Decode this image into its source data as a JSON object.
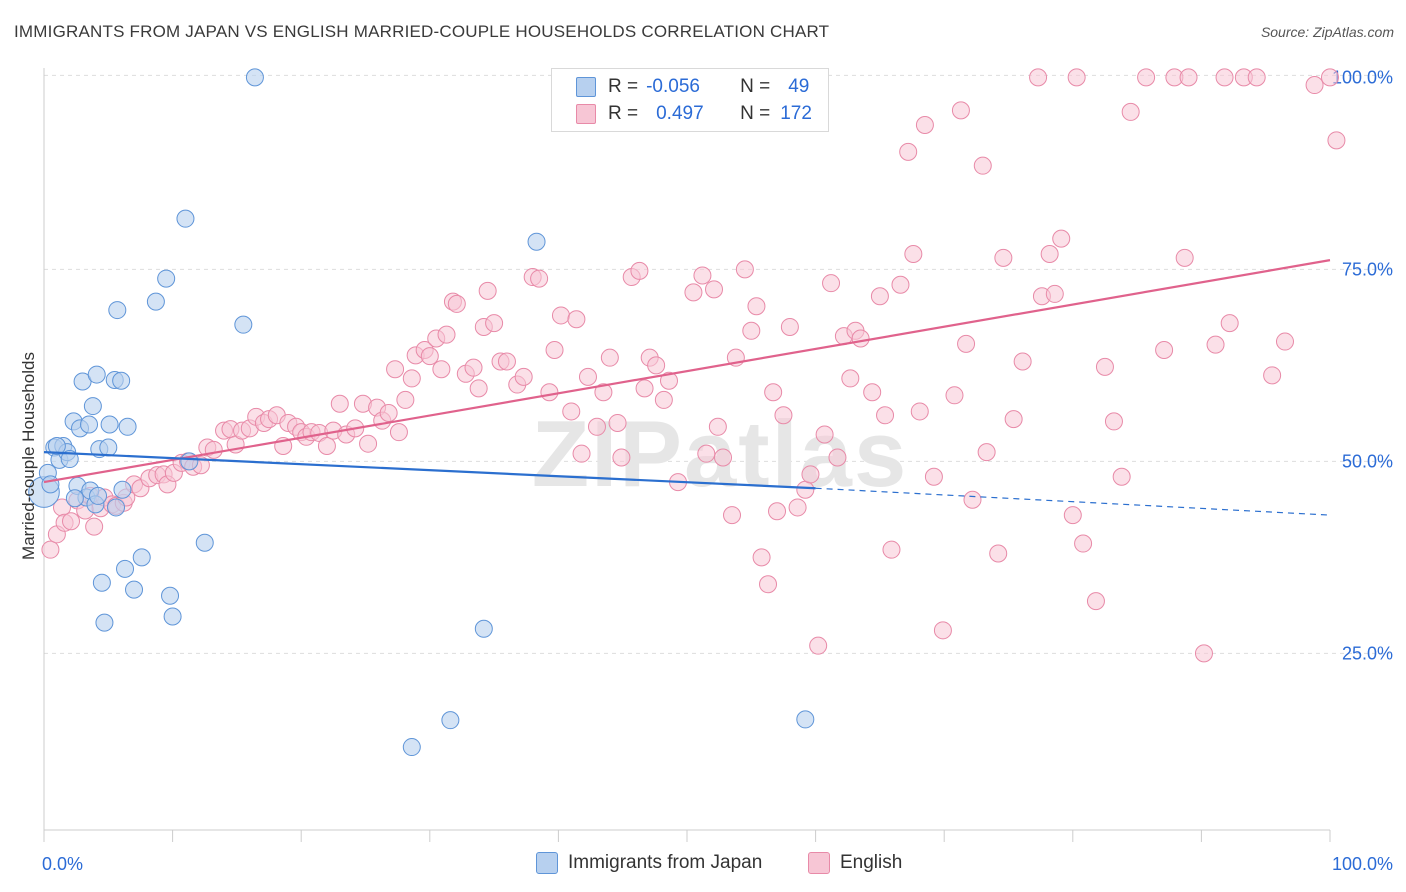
{
  "header": {
    "title": "IMMIGRANTS FROM JAPAN VS ENGLISH MARRIED-COUPLE HOUSEHOLDS CORRELATION CHART",
    "source": "Source: ZipAtlas.com"
  },
  "legend_top": {
    "rows": [
      {
        "r_label": "R =",
        "r_value": "-0.056",
        "n_label": "N =",
        "n_value": "49"
      },
      {
        "r_label": "R =",
        "r_value": "0.497",
        "n_label": "N =",
        "n_value": "172"
      }
    ]
  },
  "bottom_legend": {
    "series1": "Immigrants from Japan",
    "series2": "English"
  },
  "watermark": "ZIPatlas",
  "colors": {
    "japan_fill": "#b7d0ef",
    "japan_stroke": "#5f95d8",
    "japan_line": "#2b6fcf",
    "english_fill": "#f7c6d5",
    "english_stroke": "#e88aa8",
    "english_line": "#e0628c",
    "tick_label": "#2b6bd6",
    "grid": "#dddddd"
  },
  "chart_data": {
    "type": "scatter",
    "title": "IMMIGRANTS FROM JAPAN VS ENGLISH MARRIED-COUPLE HOUSEHOLDS CORRELATION CHART",
    "ylabel": "Married-couple Households",
    "xlabel": "",
    "xlim": [
      0,
      100
    ],
    "ylim": [
      2,
      102
    ],
    "x_tick_labels": [
      "0.0%",
      "100.0%"
    ],
    "y_ticks": [
      25,
      50,
      75,
      100
    ],
    "y_tick_labels": [
      "25.0%",
      "50.0%",
      "75.0%",
      "100.0%"
    ],
    "grid": true,
    "series": [
      {
        "name": "Immigrants from Japan",
        "r": -0.056,
        "n": 49,
        "trend": {
          "x0": 0,
          "y0": 51.2,
          "x1": 60,
          "y1": 46.5,
          "dashed_to_x": 100,
          "dashed_to_y": 43.0
        },
        "points": [
          [
            0,
            46,
            1.8
          ],
          [
            0.3,
            48.5,
            1
          ],
          [
            0.8,
            51.8,
            1
          ],
          [
            1.2,
            50.2,
            1
          ],
          [
            1.5,
            52.0,
            1
          ],
          [
            1.8,
            51.2,
            1
          ],
          [
            2.0,
            50.3,
            1
          ],
          [
            2.3,
            55.2,
            1
          ],
          [
            2.6,
            46.8,
            1
          ],
          [
            2.8,
            54.3,
            1
          ],
          [
            3.0,
            60.4,
            1
          ],
          [
            3.3,
            45.3,
            1
          ],
          [
            3.5,
            54.8,
            1
          ],
          [
            3.6,
            46.2,
            1
          ],
          [
            3.8,
            57.2,
            1
          ],
          [
            4.0,
            44.4,
            1
          ],
          [
            4.1,
            61.3,
            1
          ],
          [
            4.3,
            51.6,
            1
          ],
          [
            4.5,
            34.2,
            1
          ],
          [
            4.7,
            29.0,
            1
          ],
          [
            5.0,
            51.8,
            1
          ],
          [
            5.1,
            54.8,
            1
          ],
          [
            5.5,
            60.6,
            1
          ],
          [
            5.6,
            44.0,
            1
          ],
          [
            5.7,
            69.7,
            1
          ],
          [
            6.0,
            60.5,
            1
          ],
          [
            6.1,
            46.3,
            1
          ],
          [
            6.3,
            36.0,
            1
          ],
          [
            6.5,
            54.5,
            1
          ],
          [
            7.0,
            33.3,
            1
          ],
          [
            7.6,
            37.5,
            1
          ],
          [
            8.7,
            70.8,
            1
          ],
          [
            9.5,
            73.8,
            1
          ],
          [
            9.8,
            32.5,
            1
          ],
          [
            10.0,
            29.8,
            1
          ],
          [
            11.0,
            81.6,
            1
          ],
          [
            11.3,
            50.0,
            1
          ],
          [
            12.5,
            39.4,
            1
          ],
          [
            15.5,
            67.8,
            1
          ],
          [
            16.4,
            100.0,
            1
          ],
          [
            28.6,
            12.8,
            1
          ],
          [
            31.6,
            16.3,
            1
          ],
          [
            34.2,
            28.2,
            1
          ],
          [
            38.3,
            78.6,
            1
          ],
          [
            59.2,
            16.4,
            1
          ],
          [
            0.5,
            47,
            1
          ],
          [
            1,
            52,
            1
          ],
          [
            2.4,
            45.2,
            1
          ],
          [
            4.2,
            45.5,
            1
          ]
        ]
      },
      {
        "name": "English",
        "r": 0.497,
        "n": 172,
        "trend": {
          "x0": 0,
          "y0": 47.3,
          "x1": 100,
          "y1": 76.2
        },
        "points": [
          [
            0.5,
            38.5
          ],
          [
            1,
            40.5
          ],
          [
            1.4,
            44.0
          ],
          [
            1.6,
            42.0
          ],
          [
            2.1,
            42.2
          ],
          [
            2.6,
            44.9
          ],
          [
            3.2,
            43.6
          ],
          [
            3.6,
            45.5
          ],
          [
            3.9,
            41.5
          ],
          [
            4.4,
            43.9
          ],
          [
            4.7,
            45.3
          ],
          [
            5.3,
            44.4
          ],
          [
            5.6,
            44.2
          ],
          [
            6.2,
            44.6
          ],
          [
            6.4,
            45.3
          ],
          [
            7.0,
            47.0
          ],
          [
            7.5,
            46.5
          ],
          [
            8.2,
            47.8
          ],
          [
            8.8,
            48.2
          ],
          [
            9.3,
            48.3
          ],
          [
            9.6,
            47.0
          ],
          [
            10.1,
            48.5
          ],
          [
            10.7,
            49.8
          ],
          [
            11.2,
            50.0
          ],
          [
            11.6,
            49.3
          ],
          [
            12.2,
            49.5
          ],
          [
            12.7,
            51.8
          ],
          [
            13.2,
            51.5
          ],
          [
            14.0,
            54.0
          ],
          [
            14.5,
            54.2
          ],
          [
            14.9,
            52.2
          ],
          [
            15.4,
            54.0
          ],
          [
            16.0,
            54.3
          ],
          [
            16.5,
            55.8
          ],
          [
            17.1,
            55.0
          ],
          [
            17.5,
            55.5
          ],
          [
            18.1,
            56.0
          ],
          [
            18.6,
            52.0
          ],
          [
            19.0,
            55.0
          ],
          [
            19.6,
            54.5
          ],
          [
            20.0,
            53.8
          ],
          [
            20.4,
            53.2
          ],
          [
            20.8,
            53.8
          ],
          [
            21.4,
            53.7
          ],
          [
            22.0,
            52.0
          ],
          [
            22.5,
            54.0
          ],
          [
            23.0,
            57.5
          ],
          [
            23.5,
            53.5
          ],
          [
            24.2,
            54.3
          ],
          [
            24.8,
            57.5
          ],
          [
            25.2,
            52.3
          ],
          [
            25.9,
            57.0
          ],
          [
            26.3,
            55.3
          ],
          [
            26.8,
            56.3
          ],
          [
            27.3,
            62.0
          ],
          [
            27.6,
            53.8
          ],
          [
            28.1,
            58.0
          ],
          [
            28.6,
            60.8
          ],
          [
            28.9,
            63.8
          ],
          [
            29.6,
            64.5
          ],
          [
            30.0,
            63.7
          ],
          [
            30.5,
            66.0
          ],
          [
            30.9,
            62.0
          ],
          [
            31.3,
            66.5
          ],
          [
            31.8,
            70.8
          ],
          [
            32.1,
            70.5
          ],
          [
            32.8,
            61.4
          ],
          [
            33.4,
            62.2
          ],
          [
            33.8,
            59.5
          ],
          [
            34.2,
            67.5
          ],
          [
            34.5,
            72.2
          ],
          [
            35.0,
            68.0
          ],
          [
            35.5,
            63.0
          ],
          [
            36.0,
            63.0
          ],
          [
            36.8,
            60.0
          ],
          [
            37.3,
            61.0
          ],
          [
            38.0,
            74.0
          ],
          [
            38.5,
            73.8
          ],
          [
            39.3,
            59.0
          ],
          [
            39.7,
            64.5
          ],
          [
            40.2,
            69.0
          ],
          [
            41.0,
            56.5
          ],
          [
            41.4,
            68.5
          ],
          [
            41.8,
            51.0
          ],
          [
            42.3,
            61.0
          ],
          [
            43.0,
            54.5
          ],
          [
            43.5,
            59.0
          ],
          [
            44.0,
            63.5
          ],
          [
            44.6,
            55.0
          ],
          [
            44.9,
            50.5
          ],
          [
            45.7,
            74.0
          ],
          [
            46.3,
            74.8
          ],
          [
            46.7,
            59.5
          ],
          [
            47.1,
            63.5
          ],
          [
            47.6,
            62.5
          ],
          [
            48.2,
            58.0
          ],
          [
            48.6,
            60.5
          ],
          [
            49.3,
            47.3
          ],
          [
            50.5,
            72.0
          ],
          [
            51.2,
            74.2
          ],
          [
            51.5,
            51.0
          ],
          [
            52.1,
            72.4
          ],
          [
            52.4,
            54.5
          ],
          [
            52.8,
            50.5
          ],
          [
            53.5,
            43.0
          ],
          [
            53.8,
            63.5
          ],
          [
            54.5,
            75.0
          ],
          [
            55.0,
            67.0
          ],
          [
            55.4,
            70.2
          ],
          [
            55.8,
            37.5
          ],
          [
            56.3,
            34.0
          ],
          [
            56.7,
            59.0
          ],
          [
            57.0,
            43.5
          ],
          [
            57.5,
            56.0
          ],
          [
            58.0,
            67.5
          ],
          [
            58.6,
            44.0
          ],
          [
            59.2,
            46.3
          ],
          [
            59.6,
            48.3
          ],
          [
            60.2,
            26.0
          ],
          [
            60.7,
            53.5
          ],
          [
            61.2,
            73.2
          ],
          [
            61.7,
            50.5
          ],
          [
            62.2,
            66.3
          ],
          [
            62.7,
            60.8
          ],
          [
            63.1,
            67.0
          ],
          [
            63.5,
            66.0
          ],
          [
            64.4,
            59.0
          ],
          [
            65.0,
            71.5
          ],
          [
            65.4,
            56.0
          ],
          [
            65.9,
            38.5
          ],
          [
            66.6,
            73.0
          ],
          [
            67.2,
            90.3
          ],
          [
            67.6,
            77.0
          ],
          [
            68.1,
            56.5
          ],
          [
            68.5,
            93.8
          ],
          [
            69.2,
            48.0
          ],
          [
            69.9,
            28.0
          ],
          [
            70.8,
            58.6
          ],
          [
            71.3,
            95.7
          ],
          [
            71.7,
            65.3
          ],
          [
            72.2,
            45.0
          ],
          [
            73.0,
            88.5
          ],
          [
            73.3,
            51.2
          ],
          [
            74.2,
            38.0
          ],
          [
            74.6,
            76.5
          ],
          [
            75.4,
            55.5
          ],
          [
            76.1,
            63.0
          ],
          [
            77.3,
            100.0
          ],
          [
            77.6,
            71.5
          ],
          [
            78.2,
            77.0
          ],
          [
            78.6,
            71.8
          ],
          [
            79.1,
            79.0
          ],
          [
            80.0,
            43.0
          ],
          [
            80.3,
            100.0
          ],
          [
            80.8,
            39.3
          ],
          [
            81.8,
            31.8
          ],
          [
            82.5,
            62.3
          ],
          [
            83.2,
            55.2
          ],
          [
            83.8,
            48.0
          ],
          [
            84.5,
            95.5
          ],
          [
            85.7,
            100.0
          ],
          [
            87.1,
            64.5
          ],
          [
            87.9,
            100.0
          ],
          [
            88.7,
            76.5
          ],
          [
            89.0,
            100.0
          ],
          [
            90.2,
            25.0
          ],
          [
            91.1,
            65.2
          ],
          [
            91.8,
            100.0
          ],
          [
            92.2,
            68.0
          ],
          [
            93.3,
            100.0
          ],
          [
            94.3,
            100.0
          ],
          [
            95.5,
            61.2
          ],
          [
            96.5,
            65.6
          ],
          [
            98.8,
            99.0
          ],
          [
            100.0,
            100.0
          ],
          [
            100.5,
            91.8
          ]
        ]
      }
    ]
  }
}
